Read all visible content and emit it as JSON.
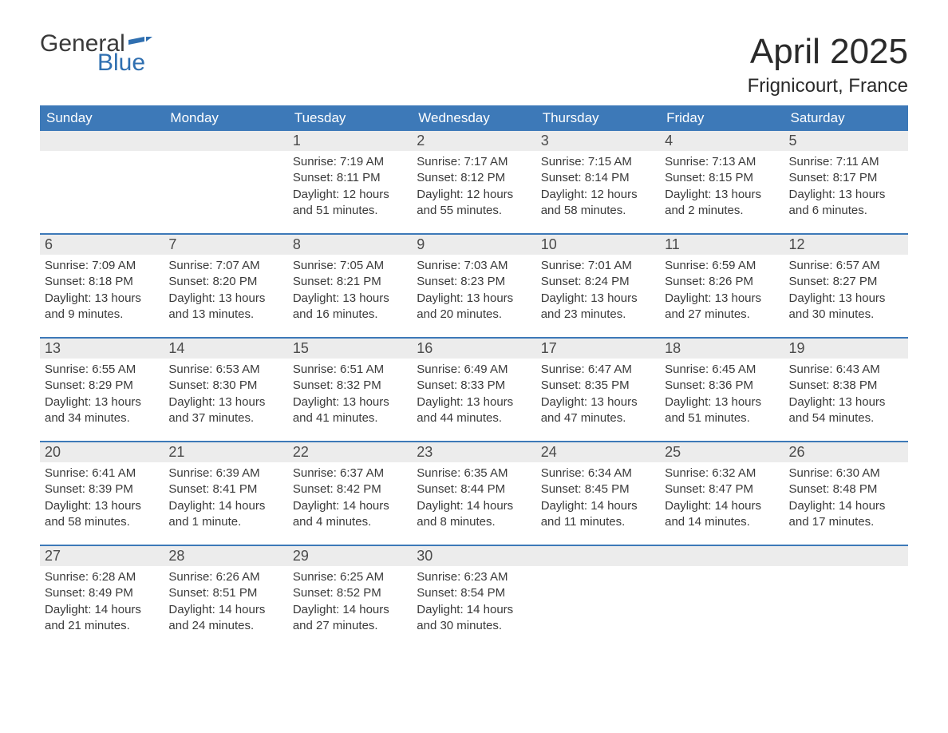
{
  "logo": {
    "word1": "General",
    "word2": "Blue",
    "flag_color": "#2f6fb0"
  },
  "title": "April 2025",
  "location": "Frignicourt, France",
  "colors": {
    "header_bg": "#3d79b8",
    "header_text": "#ffffff",
    "daynum_bg": "#ececec",
    "text": "#3a3a3a",
    "week_border": "#3d79b8"
  },
  "weekdays": [
    "Sunday",
    "Monday",
    "Tuesday",
    "Wednesday",
    "Thursday",
    "Friday",
    "Saturday"
  ],
  "weeks": [
    [
      null,
      null,
      {
        "n": "1",
        "sunrise": "7:19 AM",
        "sunset": "8:11 PM",
        "daylight": "12 hours and 51 minutes."
      },
      {
        "n": "2",
        "sunrise": "7:17 AM",
        "sunset": "8:12 PM",
        "daylight": "12 hours and 55 minutes."
      },
      {
        "n": "3",
        "sunrise": "7:15 AM",
        "sunset": "8:14 PM",
        "daylight": "12 hours and 58 minutes."
      },
      {
        "n": "4",
        "sunrise": "7:13 AM",
        "sunset": "8:15 PM",
        "daylight": "13 hours and 2 minutes."
      },
      {
        "n": "5",
        "sunrise": "7:11 AM",
        "sunset": "8:17 PM",
        "daylight": "13 hours and 6 minutes."
      }
    ],
    [
      {
        "n": "6",
        "sunrise": "7:09 AM",
        "sunset": "8:18 PM",
        "daylight": "13 hours and 9 minutes."
      },
      {
        "n": "7",
        "sunrise": "7:07 AM",
        "sunset": "8:20 PM",
        "daylight": "13 hours and 13 minutes."
      },
      {
        "n": "8",
        "sunrise": "7:05 AM",
        "sunset": "8:21 PM",
        "daylight": "13 hours and 16 minutes."
      },
      {
        "n": "9",
        "sunrise": "7:03 AM",
        "sunset": "8:23 PM",
        "daylight": "13 hours and 20 minutes."
      },
      {
        "n": "10",
        "sunrise": "7:01 AM",
        "sunset": "8:24 PM",
        "daylight": "13 hours and 23 minutes."
      },
      {
        "n": "11",
        "sunrise": "6:59 AM",
        "sunset": "8:26 PM",
        "daylight": "13 hours and 27 minutes."
      },
      {
        "n": "12",
        "sunrise": "6:57 AM",
        "sunset": "8:27 PM",
        "daylight": "13 hours and 30 minutes."
      }
    ],
    [
      {
        "n": "13",
        "sunrise": "6:55 AM",
        "sunset": "8:29 PM",
        "daylight": "13 hours and 34 minutes."
      },
      {
        "n": "14",
        "sunrise": "6:53 AM",
        "sunset": "8:30 PM",
        "daylight": "13 hours and 37 minutes."
      },
      {
        "n": "15",
        "sunrise": "6:51 AM",
        "sunset": "8:32 PM",
        "daylight": "13 hours and 41 minutes."
      },
      {
        "n": "16",
        "sunrise": "6:49 AM",
        "sunset": "8:33 PM",
        "daylight": "13 hours and 44 minutes."
      },
      {
        "n": "17",
        "sunrise": "6:47 AM",
        "sunset": "8:35 PM",
        "daylight": "13 hours and 47 minutes."
      },
      {
        "n": "18",
        "sunrise": "6:45 AM",
        "sunset": "8:36 PM",
        "daylight": "13 hours and 51 minutes."
      },
      {
        "n": "19",
        "sunrise": "6:43 AM",
        "sunset": "8:38 PM",
        "daylight": "13 hours and 54 minutes."
      }
    ],
    [
      {
        "n": "20",
        "sunrise": "6:41 AM",
        "sunset": "8:39 PM",
        "daylight": "13 hours and 58 minutes."
      },
      {
        "n": "21",
        "sunrise": "6:39 AM",
        "sunset": "8:41 PM",
        "daylight": "14 hours and 1 minute."
      },
      {
        "n": "22",
        "sunrise": "6:37 AM",
        "sunset": "8:42 PM",
        "daylight": "14 hours and 4 minutes."
      },
      {
        "n": "23",
        "sunrise": "6:35 AM",
        "sunset": "8:44 PM",
        "daylight": "14 hours and 8 minutes."
      },
      {
        "n": "24",
        "sunrise": "6:34 AM",
        "sunset": "8:45 PM",
        "daylight": "14 hours and 11 minutes."
      },
      {
        "n": "25",
        "sunrise": "6:32 AM",
        "sunset": "8:47 PM",
        "daylight": "14 hours and 14 minutes."
      },
      {
        "n": "26",
        "sunrise": "6:30 AM",
        "sunset": "8:48 PM",
        "daylight": "14 hours and 17 minutes."
      }
    ],
    [
      {
        "n": "27",
        "sunrise": "6:28 AM",
        "sunset": "8:49 PM",
        "daylight": "14 hours and 21 minutes."
      },
      {
        "n": "28",
        "sunrise": "6:26 AM",
        "sunset": "8:51 PM",
        "daylight": "14 hours and 24 minutes."
      },
      {
        "n": "29",
        "sunrise": "6:25 AM",
        "sunset": "8:52 PM",
        "daylight": "14 hours and 27 minutes."
      },
      {
        "n": "30",
        "sunrise": "6:23 AM",
        "sunset": "8:54 PM",
        "daylight": "14 hours and 30 minutes."
      },
      null,
      null,
      null
    ]
  ],
  "labels": {
    "sunrise": "Sunrise:",
    "sunset": "Sunset:",
    "daylight": "Daylight:"
  }
}
